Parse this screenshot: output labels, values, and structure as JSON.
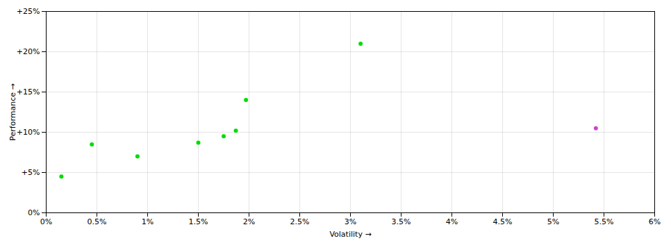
{
  "chart_data": {
    "type": "scatter",
    "xlabel": "Volatility",
    "ylabel": "Performance",
    "series": [
      {
        "color": "#00dd00",
        "x": [
          0.15,
          0.45,
          0.9,
          1.5,
          1.75,
          1.87,
          1.97,
          3.1
        ],
        "values": [
          4.5,
          8.5,
          7.0,
          8.7,
          9.5,
          10.2,
          14.0,
          21.0
        ]
      },
      {
        "color": "#cc44cc",
        "x": [
          5.42
        ],
        "values": [
          10.5
        ]
      }
    ],
    "xlim": [
      0.0,
      6.0
    ],
    "ylim": [
      0.0,
      25.0
    ],
    "xticks": [
      {
        "value": 0.0,
        "label": "0%"
      },
      {
        "value": 0.5,
        "label": "0.5%"
      },
      {
        "value": 1.0,
        "label": "1%"
      },
      {
        "value": 1.5,
        "label": "1.5%"
      },
      {
        "value": 2.0,
        "label": "2%"
      },
      {
        "value": 2.5,
        "label": "2.5%"
      },
      {
        "value": 3.0,
        "label": "3%"
      },
      {
        "value": 3.5,
        "label": "3.5%"
      },
      {
        "value": 4.0,
        "label": "4%"
      },
      {
        "value": 4.5,
        "label": "4.5%"
      },
      {
        "value": 5.0,
        "label": "5%"
      },
      {
        "value": 5.5,
        "label": "5.5%"
      },
      {
        "value": 6.0,
        "label": "6%"
      }
    ],
    "yticks": [
      {
        "value": 0,
        "label": "0%"
      },
      {
        "value": 5,
        "label": "+5%"
      },
      {
        "value": 10,
        "label": "+10%"
      },
      {
        "value": 15,
        "label": "+15%"
      },
      {
        "value": 20,
        "label": "+20%"
      },
      {
        "value": 25,
        "label": "+25%"
      }
    ],
    "grid": true
  }
}
